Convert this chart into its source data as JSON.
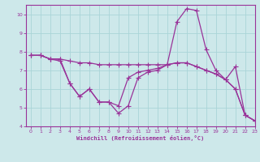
{
  "line1_x": [
    0,
    1,
    2,
    3,
    4,
    5,
    6,
    7,
    8,
    9,
    10,
    11,
    12,
    13,
    14,
    15,
    16,
    17,
    18,
    19,
    20,
    21,
    22,
    23
  ],
  "line1_y": [
    7.8,
    7.8,
    7.6,
    7.6,
    7.5,
    7.4,
    7.4,
    7.3,
    7.3,
    7.3,
    7.3,
    7.3,
    7.3,
    7.3,
    7.3,
    7.4,
    7.4,
    7.2,
    7.0,
    6.8,
    6.5,
    7.2,
    4.6,
    4.3
  ],
  "line2_x": [
    0,
    1,
    2,
    3,
    4,
    5,
    6,
    7,
    8,
    9,
    10,
    11,
    12,
    13,
    14,
    15,
    16,
    17,
    18,
    19,
    20,
    21,
    22,
    23
  ],
  "line2_y": [
    7.8,
    7.8,
    7.6,
    7.5,
    6.3,
    5.6,
    6.0,
    5.3,
    5.3,
    5.1,
    6.6,
    6.9,
    7.0,
    7.1,
    7.3,
    9.6,
    10.3,
    10.2,
    8.1,
    7.0,
    6.5,
    6.0,
    4.6,
    4.3
  ],
  "line3_x": [
    0,
    1,
    2,
    3,
    4,
    5,
    6,
    7,
    8,
    9,
    10,
    11,
    12,
    13,
    14,
    15,
    16,
    17,
    18,
    19,
    20,
    21,
    22,
    23
  ],
  "line3_y": [
    7.8,
    7.8,
    7.6,
    7.6,
    6.3,
    5.6,
    6.0,
    5.3,
    5.3,
    4.7,
    5.1,
    6.6,
    6.9,
    7.0,
    7.3,
    7.4,
    7.4,
    7.2,
    7.0,
    6.8,
    6.5,
    6.0,
    4.6,
    4.3
  ],
  "line_color": "#993399",
  "bg_color": "#cde8ea",
  "grid_color": "#aad4d8",
  "axis_color": "#993399",
  "xlabel": "Windchill (Refroidissement éolien,°C)",
  "xlim": [
    -0.5,
    23
  ],
  "ylim": [
    4,
    10.5
  ],
  "yticks": [
    4,
    5,
    6,
    7,
    8,
    9,
    10
  ],
  "xticks": [
    0,
    1,
    2,
    3,
    4,
    5,
    6,
    7,
    8,
    9,
    10,
    11,
    12,
    13,
    14,
    15,
    16,
    17,
    18,
    19,
    20,
    21,
    22,
    23
  ],
  "marker_size": 2.5,
  "linewidth": 0.9
}
